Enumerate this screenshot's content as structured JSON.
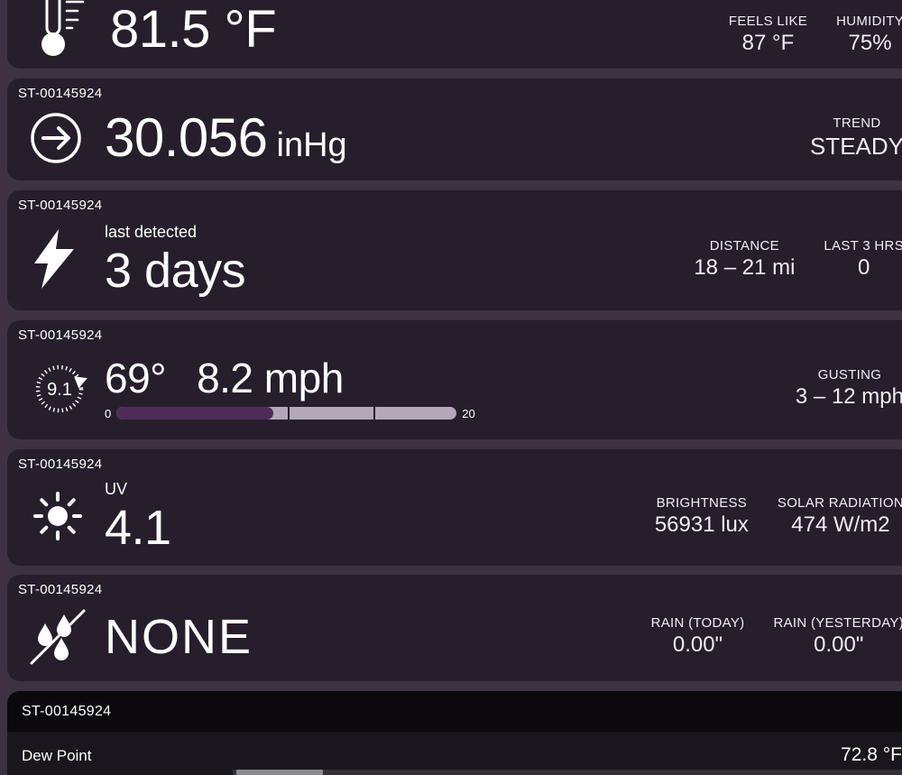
{
  "station_id": "ST-00145924",
  "colors": {
    "background": "#3c3241",
    "card": "#271e2c",
    "details_header": "#0c090e",
    "details_body": "#1b161d",
    "wind_bar_fill": "#4f2b5a",
    "wind_bar_track": "#b3a8b7"
  },
  "cards": {
    "temperature": {
      "value": "81.5 °F",
      "stats": [
        {
          "label": "FEELS LIKE",
          "value": "87 °F"
        },
        {
          "label": "HUMIDITY",
          "value": "75%"
        }
      ]
    },
    "pressure": {
      "value": "30.056",
      "unit": "inHg",
      "stats": [
        {
          "label": "TREND",
          "value": "STEADY"
        }
      ]
    },
    "lightning": {
      "sublabel": "last detected",
      "value": "3 days",
      "stats": [
        {
          "label": "DISTANCE",
          "value": "18 – 21 mi"
        },
        {
          "label": "LAST 3 HRS",
          "value": "0"
        }
      ]
    },
    "wind": {
      "dial_value": "9.1",
      "direction_deg": 69,
      "direction": "69°",
      "speed": "8.2 mph",
      "bar": {
        "min": "0",
        "max": "20",
        "fill_percent": 46,
        "dividers_percent": [
          50.3,
          75.5
        ]
      },
      "stats": [
        {
          "label": "GUSTING",
          "value": "3 – 12 mph"
        }
      ]
    },
    "uv": {
      "sublabel": "UV",
      "value": "4.1",
      "stats": [
        {
          "label": "BRIGHTNESS",
          "value": "56931 lux"
        },
        {
          "label": "SOLAR RADIATION",
          "value": "474 W/m2"
        }
      ]
    },
    "rain": {
      "value": "NONE",
      "stats": [
        {
          "label": "RAIN (TODAY)",
          "value": "0.00\""
        },
        {
          "label": "RAIN (YESTERDAY)",
          "value": "0.00\""
        }
      ]
    },
    "details": {
      "rows": [
        {
          "label": "Dew Point",
          "value": "72.8 °F"
        }
      ]
    }
  }
}
